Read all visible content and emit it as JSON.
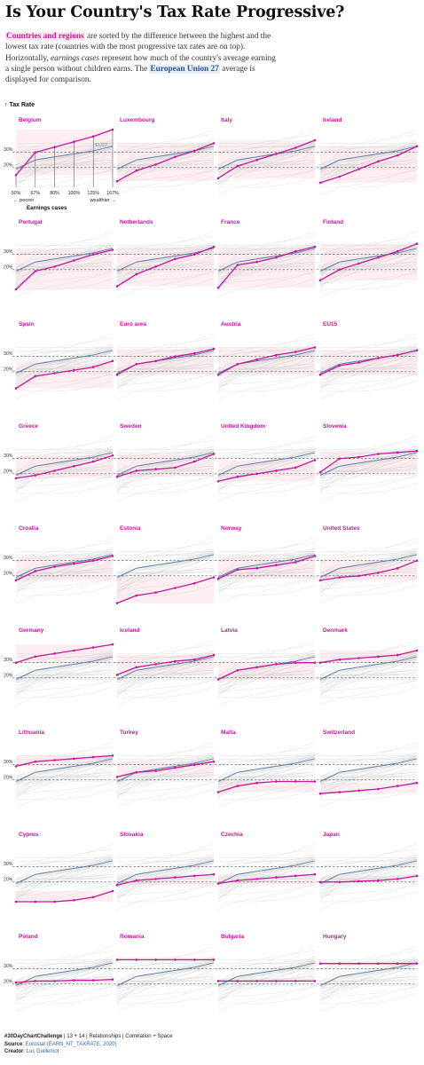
{
  "page": {
    "title": "Is Your Country's Tax Rate Progressive?",
    "intro": {
      "p1": "Countries and regions",
      "p2": " are sorted by the  difference between the highest and the lowest tax rate  (countries with the most progressive tax rates are on top). Horizontally, ",
      "p3": "earnings cases",
      "p4": " represent how much of the country's average earning a single person without children earns. The ",
      "p5": "European Union 27",
      "p6": " average is displayed for comparison."
    },
    "y_axis_title": "Tax Rate",
    "up_arrow": "↑",
    "legend": {
      "eu_label": "EU27",
      "xlabel": "Earnings cases",
      "poorer": "← poorer",
      "wealthier": "wealthier →"
    },
    "footer": {
      "line1_bold": "#30DayChartChallenge",
      "line1_rest": " | 13 + 14 | Relationships | Correlation + Space",
      "source_label": "Source",
      "source_value": "Eurostat (EARN_NT_TAXRATE, 2020)",
      "creator_label": "Creator",
      "creator_value": "Luc Guillemot"
    }
  },
  "chart_data": {
    "type": "line",
    "title": "Is Your Country's Tax Rate Progressive?",
    "x": [
      "50%",
      "67%",
      "80%",
      "100%",
      "125%",
      "167%"
    ],
    "xlabel": "Earnings cases",
    "ylabel": "Tax Rate",
    "yticks": [
      "20%",
      "30%"
    ],
    "reference_series": "EU27",
    "colors": {
      "country": "#c3189b",
      "eu27": "#5b7ea6",
      "background": "#cccccc",
      "band": "#fdeef1",
      "dashed": "#555555"
    },
    "eu27": [
      19,
      25,
      27,
      29,
      31,
      34
    ],
    "series": [
      {
        "name": "Belgium",
        "values": [
          15,
          30,
          33.5,
          37,
          40.5,
          45
        ]
      },
      {
        "name": "Luxembourg",
        "values": [
          11,
          18,
          22,
          27,
          31,
          36
        ]
      },
      {
        "name": "Italy",
        "values": [
          13,
          21,
          25,
          29,
          33,
          38
        ]
      },
      {
        "name": "Ireland",
        "values": [
          10,
          14,
          19,
          24,
          28,
          34
        ]
      },
      {
        "name": "Portugal",
        "values": [
          7,
          19,
          22,
          26,
          30,
          33
        ]
      },
      {
        "name": "Netherlands",
        "values": [
          9,
          17,
          22,
          27,
          30,
          35
        ]
      },
      {
        "name": "France",
        "values": [
          8,
          23,
          25,
          28,
          32,
          35
        ]
      },
      {
        "name": "Finland",
        "values": [
          13,
          20,
          24,
          28,
          32,
          37
        ]
      },
      {
        "name": "Spain",
        "values": [
          9,
          17,
          19,
          21,
          23,
          27
        ]
      },
      {
        "name": "Euro area",
        "values": [
          18,
          25,
          27,
          30,
          32,
          35
        ]
      },
      {
        "name": "Austria",
        "values": [
          18,
          25,
          28,
          31,
          33,
          36
        ]
      },
      {
        "name": "EU15",
        "values": [
          18,
          24,
          26,
          29,
          31,
          34
        ]
      },
      {
        "name": "Greece",
        "values": [
          17,
          19,
          22,
          25,
          28,
          32
        ]
      },
      {
        "name": "Sweden",
        "values": [
          18,
          22,
          23,
          24,
          28,
          33
        ]
      },
      {
        "name": "United Kingdom",
        "values": [
          15,
          18,
          20,
          22,
          24,
          29
        ]
      },
      {
        "name": "Slovenia",
        "values": [
          21,
          30,
          31,
          33,
          34,
          35
        ]
      },
      {
        "name": "Croatia",
        "values": [
          17,
          23,
          26,
          28,
          30,
          33
        ]
      },
      {
        "name": "Estonia",
        "values": [
          2,
          7,
          9,
          12,
          15,
          19
        ]
      },
      {
        "name": "Norway",
        "values": [
          18,
          24,
          25,
          27,
          29,
          33
        ]
      },
      {
        "name": "United States",
        "values": [
          17,
          19,
          20,
          22,
          25,
          30
        ]
      },
      {
        "name": "Germany",
        "values": [
          30,
          34,
          36,
          38,
          40,
          42
        ]
      },
      {
        "name": "Iceland",
        "values": [
          22,
          27,
          29,
          31,
          32,
          35
        ]
      },
      {
        "name": "Latvia",
        "values": [
          19,
          25,
          27,
          29,
          30,
          30
        ]
      },
      {
        "name": "Denmark",
        "values": [
          30,
          32,
          33,
          34,
          35,
          38
        ]
      },
      {
        "name": "Lithuania",
        "values": [
          29,
          32,
          33,
          34,
          35,
          36
        ]
      },
      {
        "name": "Turkey",
        "values": [
          22,
          25,
          26,
          28,
          30,
          32
        ]
      },
      {
        "name": "Malta",
        "values": [
          12,
          16,
          18,
          19,
          19,
          19
        ]
      },
      {
        "name": "Switzerland",
        "values": [
          11,
          12,
          13,
          14,
          16,
          18
        ]
      },
      {
        "name": "Cyprus",
        "values": [
          7,
          7,
          7,
          8,
          10,
          14
        ]
      },
      {
        "name": "Slovakia",
        "values": [
          18,
          21,
          22,
          23,
          24,
          25
        ]
      },
      {
        "name": "Czechia",
        "values": [
          19,
          21,
          22,
          23,
          24,
          25
        ]
      },
      {
        "name": "Japan",
        "values": [
          20,
          20,
          20.5,
          21,
          22,
          24
        ]
      },
      {
        "name": "Poland",
        "values": [
          21,
          22,
          22,
          22.5,
          22.5,
          23
        ]
      },
      {
        "name": "Romania",
        "values": [
          36,
          36,
          36,
          36,
          36,
          36
        ]
      },
      {
        "name": "Bulgaria",
        "values": [
          22,
          22,
          22,
          22,
          22,
          22
        ]
      },
      {
        "name": "Hungary",
        "values": [
          33.5,
          33.5,
          33.5,
          33.5,
          33.5,
          33.5
        ]
      }
    ]
  }
}
